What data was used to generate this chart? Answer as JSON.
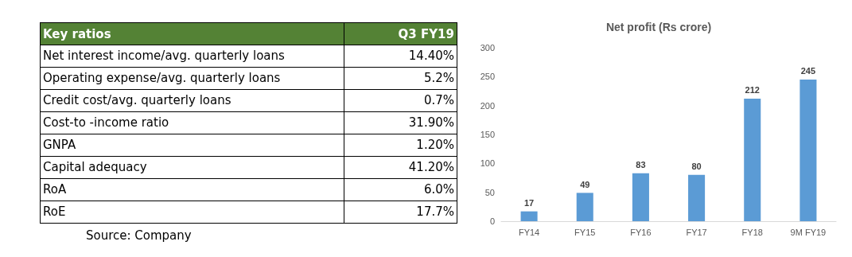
{
  "chart_data": [
    {
      "type": "other",
      "title": "Key ratios",
      "categories": [
        "Net interest income/avg. quarterly loans",
        "Operating expense/avg. quarterly loans",
        "Credit cost/avg. quarterly loans",
        "Cost-to -income ratio",
        "GNPA",
        "Capital adequacy",
        "RoA",
        "RoE"
      ],
      "series": [
        {
          "name": "Q3 FY19",
          "values": [
            14.4,
            5.2,
            0.7,
            31.9,
            1.2,
            41.2,
            6.0,
            17.7
          ],
          "value_labels": [
            "14.40%",
            "5.2%",
            "0.7%",
            "31.90%",
            "1.20%",
            "41.20%",
            "6.0%",
            "17.7%"
          ]
        }
      ],
      "annotations": [
        "Source: Company"
      ]
    },
    {
      "type": "bar",
      "title": "Net profit (Rs crore)",
      "categories": [
        "FY14",
        "FY15",
        "FY16",
        "FY17",
        "FY18",
        "9M FY19"
      ],
      "values": [
        17,
        49,
        83,
        80,
        212,
        245
      ],
      "color": "#5b9bd5",
      "ylim": [
        0,
        300
      ],
      "yticks": [
        0,
        50,
        100,
        150,
        200,
        250,
        300
      ],
      "data_labels": true,
      "grid": false
    }
  ]
}
